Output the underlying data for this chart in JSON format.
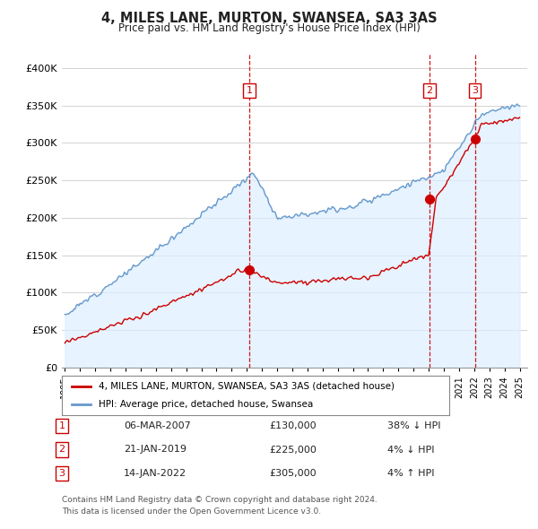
{
  "title": "4, MILES LANE, MURTON, SWANSEA, SA3 3AS",
  "subtitle": "Price paid vs. HM Land Registry's House Price Index (HPI)",
  "legend_line1": "4, MILES LANE, MURTON, SWANSEA, SA3 3AS (detached house)",
  "legend_line2": "HPI: Average price, detached house, Swansea",
  "footer1": "Contains HM Land Registry data © Crown copyright and database right 2024.",
  "footer2": "This data is licensed under the Open Government Licence v3.0.",
  "transactions": [
    {
      "num": 1,
      "date": "06-MAR-2007",
      "price": "£130,000",
      "hpi": "38% ↓ HPI"
    },
    {
      "num": 2,
      "date": "21-JAN-2019",
      "price": "£225,000",
      "hpi": "4% ↓ HPI"
    },
    {
      "num": 3,
      "date": "14-JAN-2022",
      "price": "£305,000",
      "hpi": "4% ↑ HPI"
    }
  ],
  "price_color": "#cc0000",
  "hpi_color": "#6699cc",
  "hpi_fill_color": "#ddeeff",
  "vline_color": "#cc0000",
  "marker_color": "#cc0000",
  "ylim": [
    0,
    420000
  ],
  "yticks": [
    0,
    50000,
    100000,
    150000,
    200000,
    250000,
    300000,
    350000,
    400000
  ],
  "background_color": "#ffffff",
  "grid_color": "#cccccc",
  "transaction_years": [
    2007.17,
    2019.05,
    2022.04
  ],
  "transaction_prices": [
    130000,
    225000,
    305000
  ]
}
